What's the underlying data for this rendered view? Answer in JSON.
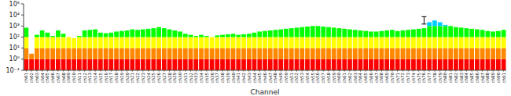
{
  "chart_data": {
    "type": "bar",
    "stacked": true,
    "log": "y",
    "grid": false,
    "xlabel": "Channel",
    "categories": [
      "ch01",
      "ch02",
      "ch03",
      "ch04",
      "ch05",
      "ch06",
      "ch07",
      "ch08",
      "ch09",
      "ch10",
      "ch11",
      "ch12",
      "ch13",
      "ch14",
      "ch15",
      "ch16",
      "ch17",
      "ch18",
      "ch19",
      "ch20",
      "ch21",
      "ch22",
      "ch23",
      "ch24",
      "ch25",
      "ch26",
      "ch27",
      "ch28",
      "ch29",
      "ch30",
      "ch31",
      "ch32",
      "ch33",
      "ch34",
      "ch35",
      "ch36",
      "ch37",
      "ch38",
      "ch39",
      "ch40",
      "ch41",
      "ch42",
      "ch43",
      "ch44",
      "ch45",
      "ch46",
      "ch47",
      "ch48",
      "ch49",
      "ch50",
      "ch51",
      "ch52",
      "ch53",
      "ch54",
      "ch55",
      "ch56",
      "ch57",
      "ch58",
      "ch59",
      "ch60",
      "ch61",
      "ch62",
      "ch63",
      "ch64",
      "ch65",
      "ch66",
      "ch67",
      "ch68",
      "ch69",
      "ch70",
      "ch71",
      "ch72",
      "ch73",
      "ch74",
      "ch75",
      "ch76",
      "ch77",
      "ch78",
      "ch79",
      "ch80",
      "ch81",
      "ch82",
      "ch83",
      "ch84",
      "ch85",
      "ch86",
      "ch87",
      "ch88",
      "ch89",
      "ch90",
      "ch91"
    ],
    "series": [
      {
        "color": "#ff0000",
        "values": [
          0.9,
          0.9,
          0.9,
          0.9,
          0.9,
          0.9,
          0.9,
          0.9,
          0.9,
          0.9,
          0.9,
          0.9,
          0.9,
          0.9,
          0.9,
          0.9,
          0.9,
          0.9,
          0.9,
          0.9,
          0.9,
          0.9,
          0.9,
          0.9,
          0.9,
          0.9,
          0.9,
          0.9,
          0.9,
          0.9,
          0.9,
          0.9,
          0.9,
          0.9,
          0.9,
          0.9,
          0.9,
          0.9,
          0.9,
          0.9,
          0.9,
          0.9,
          0.9,
          0.9,
          0.9,
          0.9,
          0.9,
          0.9,
          0.9,
          0.9,
          0.9,
          0.9,
          0.9,
          0.9,
          0.9,
          0.9,
          0.9,
          0.9,
          0.9,
          0.9,
          0.9,
          0.9,
          0.9,
          0.9,
          0.9,
          0.9,
          0.9,
          0.9,
          0.9,
          0.9,
          0.9,
          0.9,
          0.9,
          0.9,
          0.9,
          0.9,
          0.9,
          0.9,
          0.9,
          0.9,
          0.9,
          0.9,
          0.9,
          0.9,
          0.9,
          0.9,
          0.9,
          0.9,
          0.9,
          0.9,
          0.9
        ]
      },
      {
        "color": "#ff8800",
        "values": [
          9,
          2.1622776601683795,
          9,
          9,
          9,
          9,
          9,
          9,
          9,
          9,
          9,
          9,
          9,
          9,
          9,
          9,
          9,
          9,
          9,
          9,
          9,
          9,
          9,
          9,
          9,
          9,
          9,
          9,
          9,
          9,
          9,
          9,
          9,
          9,
          9,
          9,
          9,
          9,
          9,
          9,
          9,
          9,
          9,
          9,
          9,
          9,
          9,
          9,
          9,
          9,
          9,
          9,
          9,
          9,
          9,
          9,
          9,
          9,
          9,
          9,
          9,
          9,
          9,
          9,
          9,
          9,
          9,
          9,
          9,
          9,
          9,
          9,
          9,
          9,
          9,
          9,
          9,
          9,
          9,
          9,
          9,
          9,
          9,
          9,
          9,
          9,
          9,
          9,
          9,
          9,
          9
        ]
      },
      {
        "color": "#ffff00",
        "values": [
          90,
          null,
          90,
          90,
          90,
          90,
          90,
          90,
          90,
          69.43282347242815,
          90,
          90,
          90,
          90,
          90,
          90,
          90,
          90,
          90,
          90,
          90,
          90,
          90,
          90,
          90,
          90,
          90,
          90,
          90,
          90,
          90,
          90,
          90,
          90,
          90,
          90,
          90,
          90,
          90,
          90,
          90,
          90,
          90,
          90,
          90,
          90,
          90,
          90,
          90,
          90,
          90,
          90,
          90,
          90,
          90,
          90,
          90,
          90,
          90,
          90,
          90,
          90,
          90,
          90,
          90,
          90,
          90,
          90,
          90,
          90,
          90,
          90,
          90,
          90,
          90,
          90,
          90,
          90,
          90,
          90,
          90,
          90,
          90,
          90,
          90,
          90,
          90,
          90,
          90,
          90,
          90
        ]
      },
      {
        "color": "#00ff00",
        "values": [
          607.9457843841379,
          null,
          58.48931924611136,
          298.1071705534972,
          151.188643150958,
          25.89254117941673,
          298.1071705534972,
          99.52623149688795,
          null,
          null,
          25.89254117941673,
          298.1071705534972,
          346.6835921509632,
          401.1872336272722,
          151.188643150958,
          123.87211385683393,
          151.188643150958,
          216.22776601683796,
          254.8133892335755,
          298.1071705534972,
          401.1872336272722,
          346.6835921509632,
          401.1872336272722,
          462.3413251903491,
          530.9573444801933,
          694.3282347242815,
          530.9573444801933,
          401.1872336272722,
          298.1071705534972,
          216.22776601683796,
          99.52623149688795,
          58.48931924611136,
          25.89254117941673,
          58.48931924611136,
          25.89254117941673,
          null,
          41.25375446227544,
          58.48931924611136,
          77.82794100389228,
          99.52623149688795,
          58.48931924611136,
          77.82794100389228,
          99.52623149688795,
          151.188643150958,
          216.22776601683796,
          254.8133892335755,
          298.1071705534972,
          346.6835921509632,
          401.1872336272722,
          462.3413251903491,
          530.9573444801933,
          607.9457843841379,
          694.3282347242815,
          791.2509381337456,
          900,
          900,
          791.2509381337456,
          694.3282347242815,
          607.9457843841379,
          530.9573444801933,
          462.3413251903491,
          401.1872336272722,
          346.6835921509632,
          298.1071705534972,
          254.8133892335755,
          216.22776601683796,
          216.22776601683796,
          254.8133892335755,
          298.1071705534972,
          346.6835921509632,
          254.8133892335755,
          298.1071705534972,
          346.6835921509632,
          401.1872336272722,
          462.3413251903491,
          530.9573444801933,
          900,
          900,
          900,
          900,
          900,
          694.3282347242815,
          607.9457843841379,
          530.9573444801933,
          462.3413251903491,
          401.1872336272722,
          346.6835921509632,
          254.8133892335755,
          216.22776601683796,
          254.8133892335755,
          346.6835921509632
        ]
      },
      {
        "color": "#00ccff",
        "values": [
          null,
          null,
          null,
          null,
          null,
          null,
          null,
          null,
          null,
          null,
          null,
          null,
          null,
          null,
          null,
          null,
          null,
          null,
          null,
          null,
          null,
          null,
          null,
          null,
          null,
          null,
          null,
          null,
          null,
          null,
          null,
          null,
          null,
          null,
          null,
          null,
          null,
          null,
          null,
          null,
          null,
          null,
          null,
          null,
          null,
          null,
          null,
          null,
          null,
          null,
          null,
          null,
          null,
          null,
          null,
          null,
          null,
          null,
          null,
          null,
          null,
          null,
          null,
          null,
          null,
          null,
          null,
          null,
          null,
          null,
          null,
          null,
          null,
          null,
          null,
          null,
          1238.7211385683395,
          2162.2776601683795,
          1238.7211385683395,
          258.9254117941673,
          null,
          null,
          null,
          null,
          null,
          null,
          null,
          null,
          null,
          null,
          null
        ]
      }
    ],
    "errorbar": {
      "category": "ch76",
      "value": 3000,
      "err_lo": 1500,
      "err_hi": 4000
    },
    "ylim": [
      0.1,
      100000
    ],
    "yticks": [
      {
        "value": 0.1,
        "label": "10⁻¹"
      },
      {
        "value": 1,
        "label": "10⁰"
      },
      {
        "value": 10,
        "label": "10¹"
      },
      {
        "value": 100,
        "label": "10²"
      },
      {
        "value": 1000,
        "label": "10³"
      },
      {
        "value": 10000,
        "label": "10⁴"
      },
      {
        "value": 100000,
        "label": "10⁵"
      }
    ]
  }
}
